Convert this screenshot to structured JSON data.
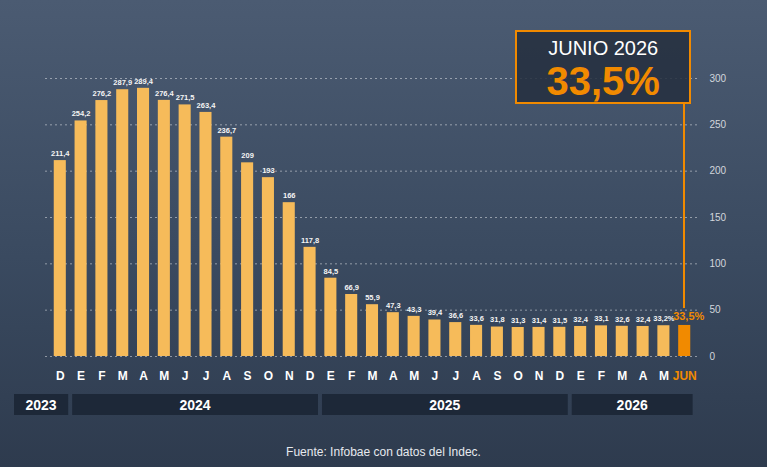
{
  "chart_data": {
    "type": "bar",
    "title": "JUNIO 2026",
    "annotation": "33,5%",
    "source": "Fuente: Infobae con datos del Indec.",
    "categories": [
      "D",
      "E",
      "F",
      "M",
      "A",
      "M",
      "J",
      "J",
      "A",
      "S",
      "O",
      "N",
      "D",
      "E",
      "F",
      "M",
      "A",
      "M",
      "J",
      "J",
      "A",
      "S",
      "O",
      "N",
      "D",
      "E",
      "F",
      "M",
      "A",
      "M",
      "JUN"
    ],
    "category_groups": [
      "2023",
      "2024",
      "2024",
      "2024",
      "2024",
      "2024",
      "2024",
      "2024",
      "2024",
      "2024",
      "2024",
      "2024",
      "2024",
      "2025",
      "2025",
      "2025",
      "2025",
      "2025",
      "2025",
      "2025",
      "2025",
      "2025",
      "2025",
      "2025",
      "2025",
      "2026",
      "2026",
      "2026",
      "2026",
      "2026",
      "2026"
    ],
    "values": [
      211.4,
      254.2,
      276.2,
      287.9,
      289.4,
      276.4,
      271.5,
      263.4,
      236.7,
      209,
      193,
      166,
      117.8,
      84.5,
      66.9,
      55.9,
      47.3,
      43.3,
      39.4,
      36.6,
      33.6,
      31.8,
      31.3,
      31.4,
      31.5,
      32.4,
      33.1,
      32.6,
      32.4,
      33.2,
      33.5
    ],
    "value_labels": [
      "211,4",
      "254,2",
      "276,2",
      "287,9",
      "289,4",
      "276,4",
      "271,5",
      "263,4",
      "236,7",
      "209",
      "193",
      "166",
      "117,8",
      "84,5",
      "66,9",
      "55,9",
      "47,3",
      "43,3",
      "39,4",
      "36,6",
      "33,6",
      "31,8",
      "31,3",
      "31,4",
      "31,5",
      "32,4",
      "33,1",
      "32,6",
      "32,4",
      "33,2%",
      "33,5%"
    ],
    "colors": [
      "#f6bb5a",
      "#f6bb5a",
      "#f6bb5a",
      "#f6bb5a",
      "#f6bb5a",
      "#f6bb5a",
      "#f6bb5a",
      "#f6bb5a",
      "#f6bb5a",
      "#f6bb5a",
      "#f6bb5a",
      "#f6bb5a",
      "#f6bb5a",
      "#f6bb5a",
      "#f6bb5a",
      "#f6bb5a",
      "#f6bb5a",
      "#f6bb5a",
      "#f6bb5a",
      "#f6bb5a",
      "#f6bb5a",
      "#f6bb5a",
      "#f6bb5a",
      "#f6bb5a",
      "#f6bb5a",
      "#f6bb5a",
      "#f6bb5a",
      "#f6bb5a",
      "#f6bb5a",
      "#f6bb5a",
      "#f18a00"
    ],
    "ylim": [
      0,
      300
    ],
    "yticks": [
      0,
      50,
      100,
      150,
      200,
      250,
      300
    ],
    "grid": true,
    "data_labels": true
  }
}
